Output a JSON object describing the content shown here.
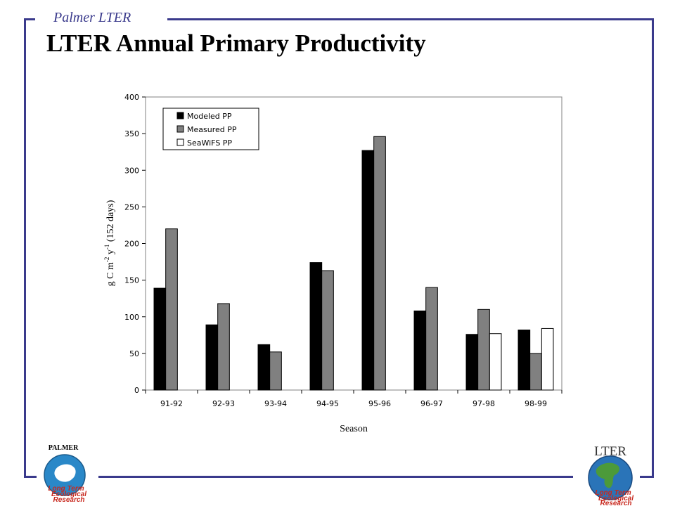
{
  "header": {
    "brand": "Palmer LTER",
    "title": "LTER Annual Primary Productivity"
  },
  "chart_data": {
    "type": "bar",
    "categories": [
      "91-92",
      "92-93",
      "93-94",
      "94-95",
      "95-96",
      "96-97",
      "97-98",
      "98-99"
    ],
    "series": [
      {
        "name": "Modeled PP",
        "color": "#000000",
        "values": [
          139,
          89,
          62,
          174,
          327,
          108,
          76,
          82
        ]
      },
      {
        "name": "Measured PP",
        "color": "#808080",
        "values": [
          220,
          118,
          52,
          163,
          346,
          140,
          110,
          50
        ]
      },
      {
        "name": "SeaWiFS PP",
        "color": "#ffffff",
        "values": [
          null,
          null,
          null,
          null,
          null,
          null,
          77,
          84
        ]
      }
    ],
    "xlabel": "Season",
    "ylabel_parts": [
      "g C m",
      "-2",
      " y",
      "-1",
      " (152 days)"
    ],
    "ylim": [
      0,
      400
    ],
    "yticks": [
      0,
      50,
      100,
      150,
      200,
      250,
      300,
      350,
      400
    ],
    "legend": "top-left",
    "grid": false
  },
  "logos": {
    "left": {
      "label": "PALMER",
      "caption_lines": [
        "Long Term",
        "Ecological",
        "Research"
      ]
    },
    "right": {
      "label": "LTER",
      "caption_lines": [
        "Long Term",
        "Ecological",
        "Research"
      ]
    }
  }
}
